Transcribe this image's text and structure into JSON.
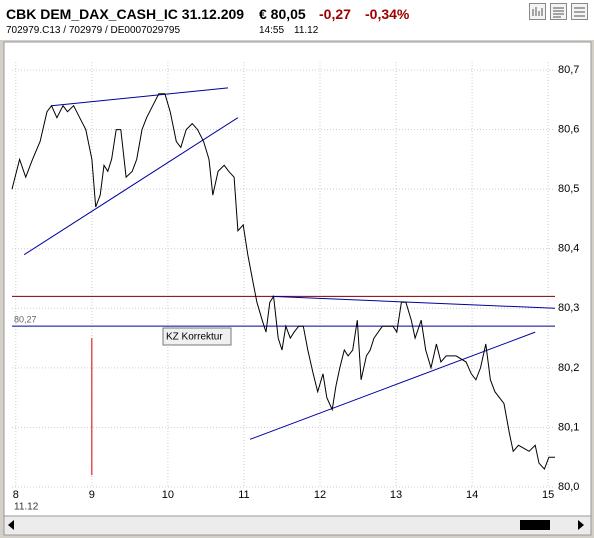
{
  "header": {
    "title": "CBK DEM_DAX_CASH_IC 31.12.209",
    "price": "€ 80,05",
    "change": "-0,27",
    "change_pct": "-0,34%",
    "ids": "702979.C13  /  702979  /  DE0007029795",
    "time": "14:55",
    "date": "11.12"
  },
  "chart_data": {
    "type": "line",
    "date_label": "11.12",
    "annotation": "KZ Korrektur",
    "xlim": [
      7.95,
      15.09
    ],
    "xticks": [
      8,
      9,
      10,
      11,
      12,
      13,
      14,
      15
    ],
    "ylim": [
      80,
      80.7
    ],
    "yticks": [
      {
        "value": 80,
        "label": "80,0"
      },
      {
        "value": 80.1,
        "label": "80,1"
      },
      {
        "value": 80.2,
        "label": "80,2"
      },
      {
        "value": 80.3,
        "label": "80,3"
      },
      {
        "value": 80.4,
        "label": "80,4"
      },
      {
        "value": 80.5,
        "label": "80,5"
      },
      {
        "value": 80.6,
        "label": "80,6"
      },
      {
        "value": 80.7,
        "label": "80,7"
      }
    ],
    "grid": true,
    "x": [
      7.95,
      8.05,
      8.13,
      8.22,
      8.32,
      8.41,
      8.47,
      8.54,
      8.62,
      8.68,
      8.76,
      8.84,
      8.92,
      9.0,
      9.05,
      9.11,
      9.16,
      9.21,
      9.26,
      9.32,
      9.38,
      9.45,
      9.53,
      9.59,
      9.66,
      9.72,
      9.8,
      9.88,
      9.96,
      10.03,
      10.11,
      10.17,
      10.24,
      10.32,
      10.39,
      10.47,
      10.54,
      10.59,
      10.66,
      10.74,
      10.8,
      10.87,
      10.92,
      10.99,
      11.05,
      11.11,
      11.17,
      11.24,
      11.29,
      11.34,
      11.39,
      11.45,
      11.5,
      11.55,
      11.61,
      11.66,
      11.72,
      11.78,
      11.84,
      11.91,
      11.97,
      12.04,
      12.09,
      12.16,
      12.21,
      12.26,
      12.32,
      12.37,
      12.43,
      12.49,
      12.54,
      12.61,
      12.66,
      12.71,
      12.82,
      12.96,
      13.01,
      13.07,
      13.13,
      13.2,
      13.25,
      13.33,
      13.39,
      13.46,
      13.53,
      13.59,
      13.66,
      13.79,
      13.92,
      13.99,
      14.05,
      14.11,
      14.18,
      14.24,
      14.3,
      14.42,
      14.49,
      14.54,
      14.61,
      14.75,
      14.83,
      14.88,
      14.95,
      15.01,
      15.09
    ],
    "series": [
      {
        "name": "CBK",
        "color": "#000000",
        "values": [
          80.5,
          80.55,
          80.52,
          80.55,
          80.58,
          80.63,
          80.64,
          80.62,
          80.64,
          80.63,
          80.64,
          80.62,
          80.6,
          80.55,
          80.47,
          80.49,
          80.54,
          80.53,
          80.55,
          80.6,
          80.6,
          80.52,
          80.53,
          80.55,
          80.6,
          80.62,
          80.64,
          80.66,
          80.66,
          80.63,
          80.58,
          80.57,
          80.6,
          80.61,
          80.6,
          80.58,
          80.55,
          80.49,
          80.53,
          80.54,
          80.53,
          80.52,
          80.43,
          80.44,
          80.39,
          80.35,
          80.31,
          80.28,
          80.26,
          80.31,
          80.32,
          80.25,
          80.23,
          80.27,
          80.25,
          80.26,
          80.27,
          80.27,
          80.23,
          80.19,
          80.16,
          80.19,
          80.15,
          80.13,
          80.17,
          80.2,
          80.23,
          80.22,
          80.23,
          80.28,
          80.18,
          80.22,
          80.23,
          80.25,
          80.27,
          80.27,
          80.26,
          80.31,
          80.31,
          80.28,
          80.25,
          80.28,
          80.23,
          80.2,
          80.24,
          80.21,
          80.22,
          80.22,
          80.21,
          80.19,
          80.18,
          80.2,
          80.24,
          80.18,
          80.16,
          80.14,
          80.09,
          80.06,
          80.07,
          80.06,
          80.07,
          80.04,
          80.03,
          80.05,
          80.05
        ]
      }
    ],
    "hlines": [
      {
        "value": 80.32,
        "color": "#800000"
      },
      {
        "value": 80.27,
        "label": "80,27",
        "color": "#0000a0"
      }
    ],
    "drawings": [
      {
        "color": "#0000a0",
        "x": [
          8.47,
          10.79
        ],
        "y": [
          80.64,
          80.67
        ]
      },
      {
        "color": "#0000a0",
        "x": [
          8.11,
          10.92
        ],
        "y": [
          80.39,
          80.62
        ]
      },
      {
        "color": "#0000a0",
        "x": [
          11.37,
          15.09
        ],
        "y": [
          80.32,
          80.3
        ]
      },
      {
        "color": "#0000a0",
        "x": [
          11.08,
          14.83
        ],
        "y": [
          80.08,
          80.26
        ]
      },
      {
        "color": "#d00000",
        "x": [
          9.0,
          9.0
        ],
        "y": [
          80.25,
          80.02
        ]
      }
    ]
  }
}
